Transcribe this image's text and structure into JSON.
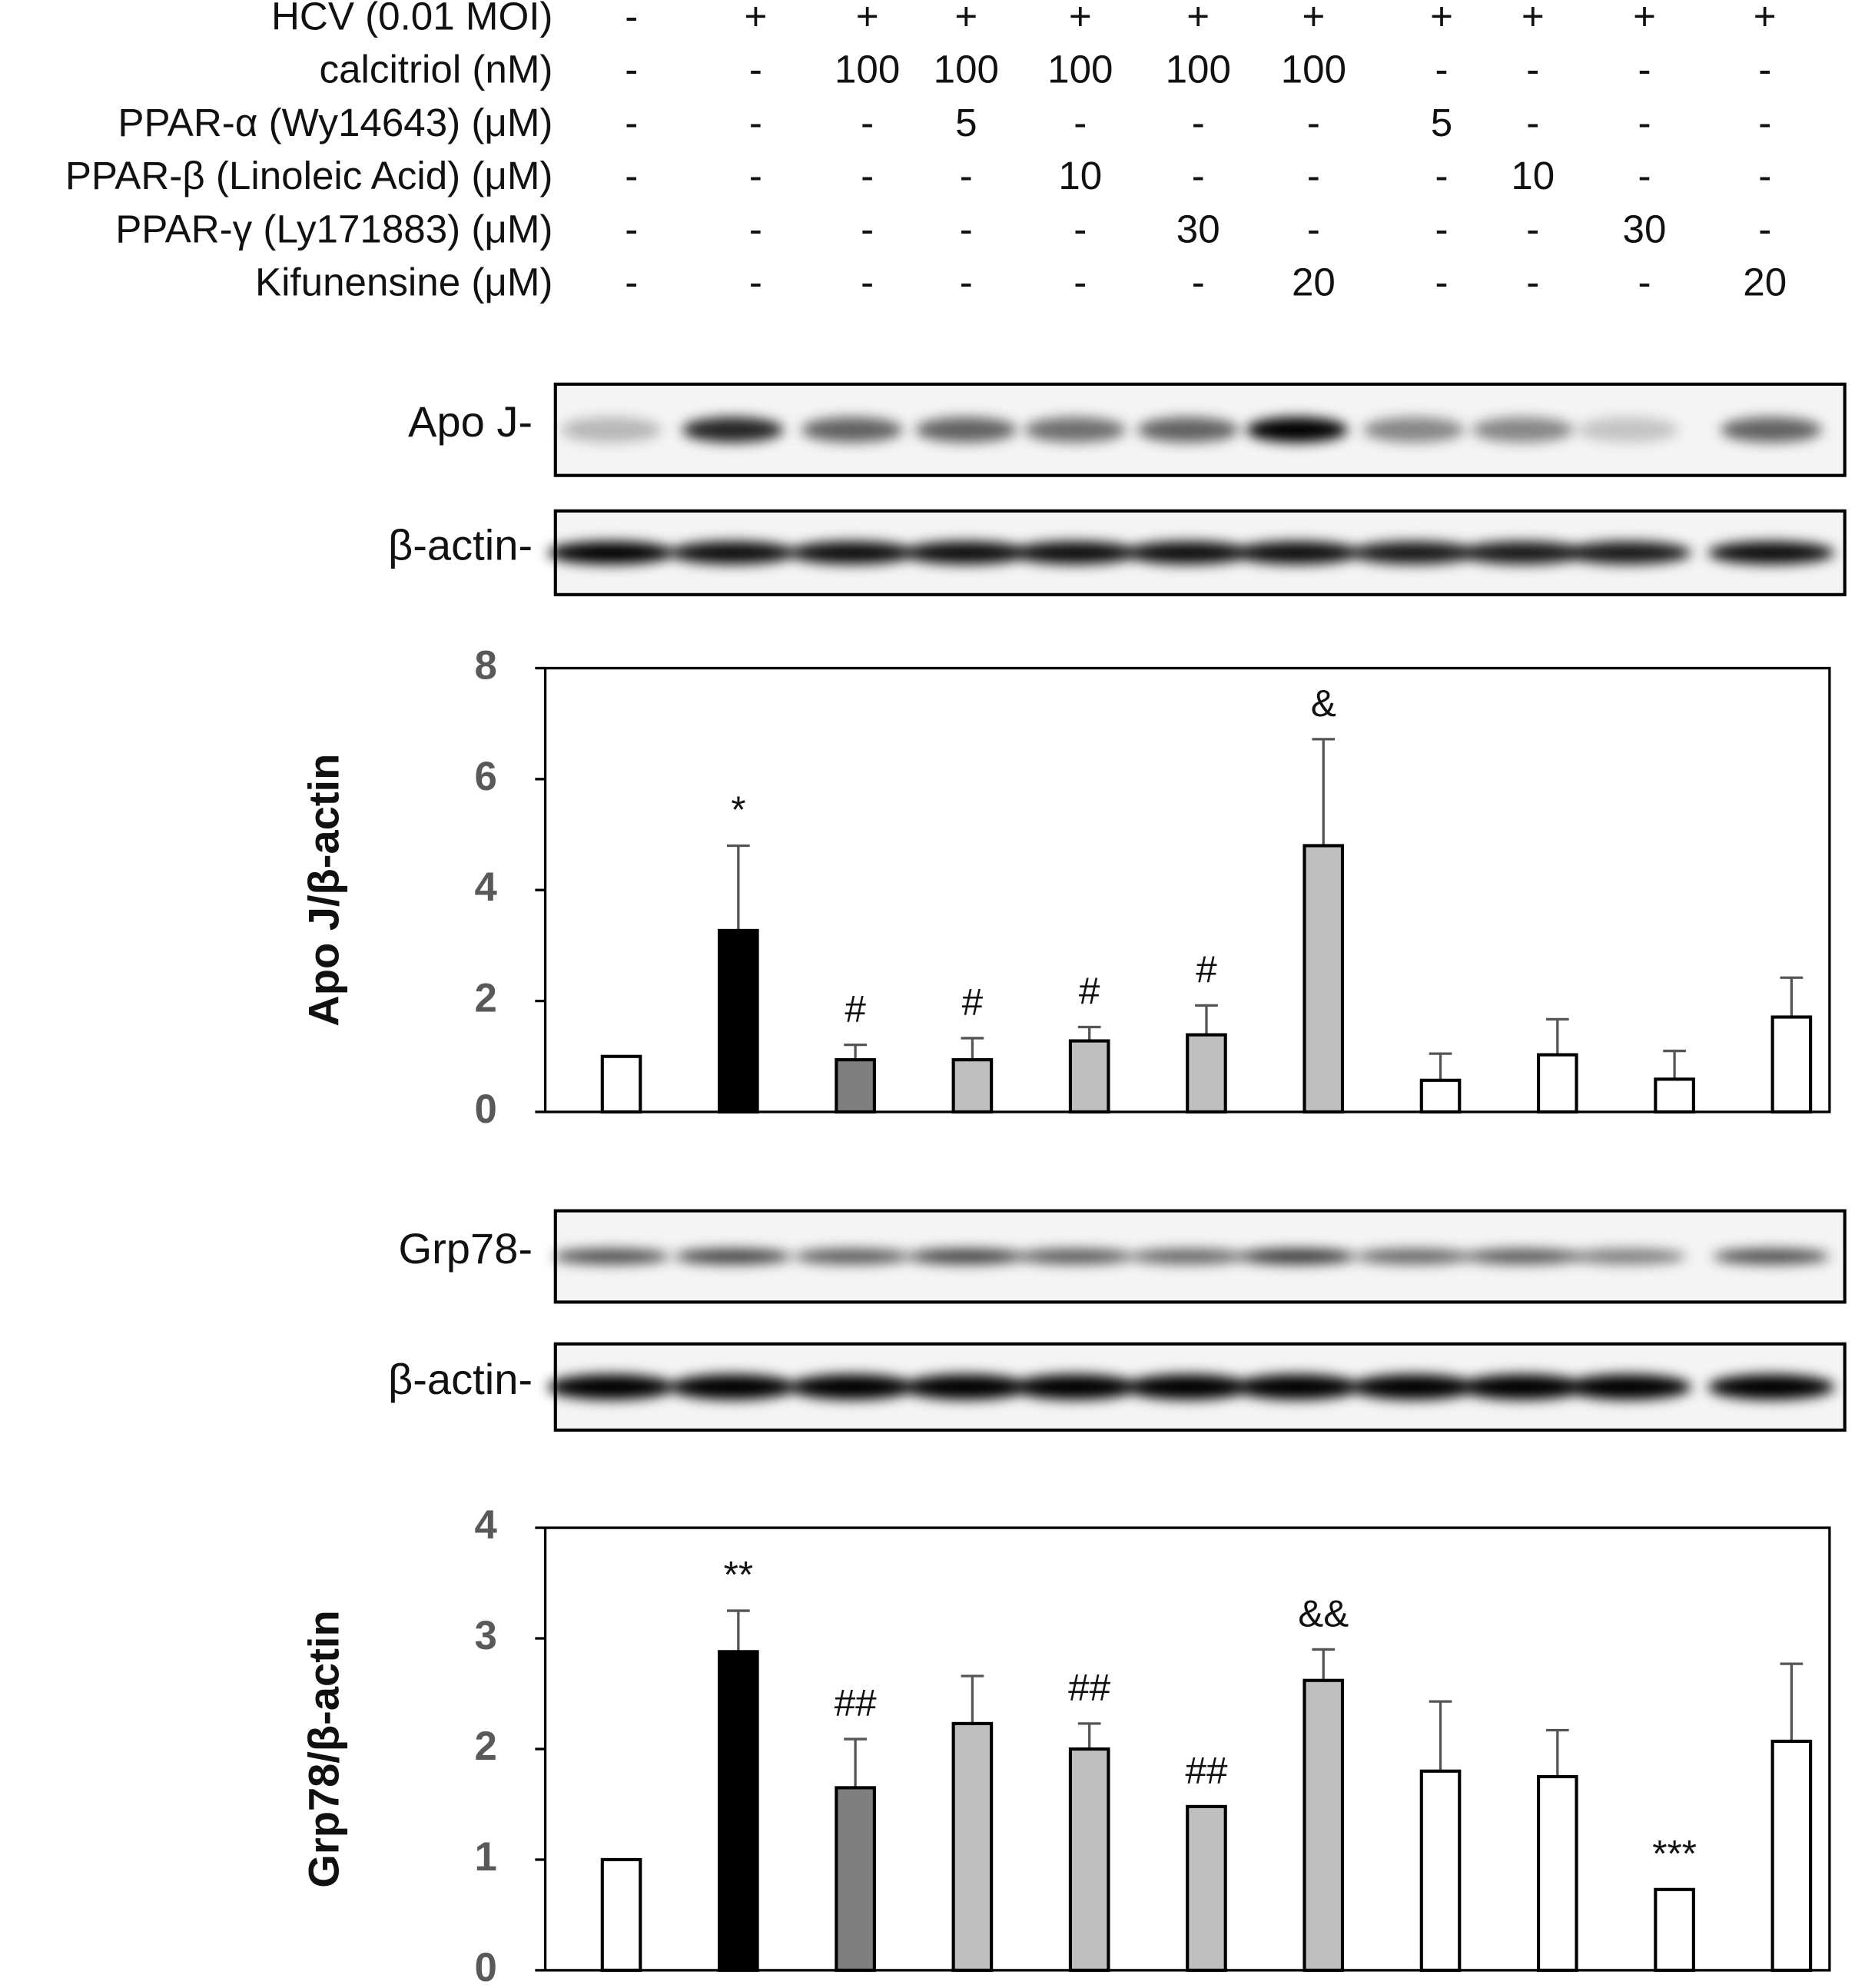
{
  "treatments": {
    "rows": [
      {
        "label": "HCV (0.01 MOI)",
        "values": [
          "-",
          "+",
          "+",
          "+",
          "+",
          "+",
          "+",
          "+",
          "+",
          "+",
          "+"
        ]
      },
      {
        "label": "calcitriol (nM)",
        "values": [
          "-",
          "-",
          "100",
          "100",
          "100",
          "100",
          "100",
          "-",
          "-",
          "-",
          "-"
        ]
      },
      {
        "label": "PPAR-α (Wy14643) (μM)",
        "values": [
          "-",
          "-",
          "-",
          "5",
          "-",
          "-",
          "-",
          "5",
          "-",
          "-",
          "-"
        ]
      },
      {
        "label": "PPAR-β (Linoleic Acid) (μM)",
        "values": [
          "-",
          "-",
          "-",
          "-",
          "10",
          "-",
          "-",
          "-",
          "10",
          "-",
          "-"
        ]
      },
      {
        "label": "PPAR-γ (Ly171883) (μM)",
        "values": [
          "-",
          "-",
          "-",
          "-",
          "-",
          "30",
          "-",
          "-",
          "-",
          "30",
          "-"
        ]
      },
      {
        "label": "Kifunensine (μM)",
        "values": [
          "-",
          "-",
          "-",
          "-",
          "-",
          "-",
          "20",
          "-",
          "-",
          "-",
          "20"
        ]
      }
    ]
  },
  "blots": [
    {
      "label": "Apo J-"
    },
    {
      "label": "β-actin-"
    },
    {
      "label": "Grp78-"
    },
    {
      "label": "β-actin-"
    }
  ],
  "chart_data": [
    {
      "type": "bar",
      "ylabel": "Apo J/β-actin",
      "values": [
        1.0,
        3.27,
        0.94,
        0.94,
        1.28,
        1.39,
        4.8,
        0.57,
        1.03,
        0.59,
        1.71
      ],
      "errors": [
        0,
        1.53,
        0.27,
        0.39,
        0.25,
        0.53,
        1.92,
        0.48,
        0.64,
        0.51,
        0.71
      ],
      "annotations": [
        null,
        "*",
        "#",
        "#",
        "#",
        "#",
        "&",
        null,
        null,
        null,
        null
      ],
      "colors": [
        "#ffffff",
        "#000000",
        "#7f7f7f",
        "#bfbfbf",
        "#bfbfbf",
        "#bfbfbf",
        "#bfbfbf",
        "#ffffff",
        "#ffffff",
        "#ffffff",
        "#ffffff"
      ],
      "ylim": [
        0,
        8
      ],
      "yticks": [
        0,
        2,
        4,
        6,
        8
      ]
    },
    {
      "type": "bar",
      "ylabel": "Grp78/β-actin",
      "values": [
        1.0,
        2.88,
        1.65,
        2.23,
        2.0,
        1.48,
        2.62,
        1.8,
        1.75,
        0.73,
        2.07
      ],
      "errors": [
        0,
        0.37,
        0.44,
        0.43,
        0.23,
        0,
        0.28,
        0.63,
        0.42,
        0,
        0.7
      ],
      "annotations": [
        null,
        "**",
        "##",
        null,
        "##",
        "##",
        "&&",
        null,
        null,
        "***",
        null
      ],
      "colors": [
        "#ffffff",
        "#000000",
        "#7f7f7f",
        "#bfbfbf",
        "#bfbfbf",
        "#bfbfbf",
        "#bfbfbf",
        "#ffffff",
        "#ffffff",
        "#ffffff",
        "#ffffff"
      ],
      "ylim": [
        0,
        4
      ],
      "yticks": [
        0,
        1,
        2,
        3,
        4
      ]
    }
  ]
}
